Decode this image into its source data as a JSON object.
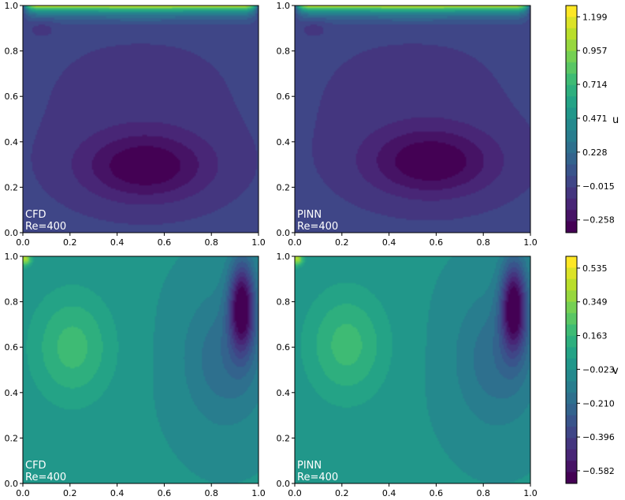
{
  "chart_data": [
    {
      "type": "heatmap",
      "variable": "u",
      "panel_label": "CFD",
      "panel_sublabel": "Re=400",
      "xlim": [
        0,
        1
      ],
      "ylim": [
        0,
        1
      ],
      "xticks": [
        "0.0",
        "0.2",
        "0.4",
        "0.6",
        "0.8",
        "1.0"
      ],
      "yticks": [
        "0.0",
        "0.2",
        "0.4",
        "0.6",
        "0.8",
        "1.0"
      ],
      "vortex_center": [
        0.52,
        0.29
      ],
      "corner_vortex": [
        0.08,
        0.91
      ]
    },
    {
      "type": "heatmap",
      "variable": "u",
      "panel_label": "PINN",
      "panel_sublabel": "Re=400",
      "xlim": [
        0,
        1
      ],
      "ylim": [
        0,
        1
      ],
      "xticks": [
        "0.0",
        "0.2",
        "0.4",
        "0.6",
        "0.8",
        "1.0"
      ],
      "yticks": [
        "0.0",
        "0.2",
        "0.4",
        "0.6",
        "0.8",
        "1.0"
      ],
      "vortex_center": [
        0.58,
        0.31
      ],
      "corner_vortex": [
        0.08,
        0.91
      ]
    },
    {
      "type": "heatmap",
      "variable": "v",
      "panel_label": "CFD",
      "panel_sublabel": "Re=400",
      "xlim": [
        0,
        1
      ],
      "ylim": [
        0,
        1
      ],
      "xticks": [
        "0.0",
        "0.2",
        "0.4",
        "0.6",
        "0.8",
        "1.0"
      ],
      "yticks": [
        "0.0",
        "0.2",
        "0.4",
        "0.6",
        "0.8",
        "1.0"
      ],
      "positive_center": [
        0.21,
        0.6
      ],
      "negative_center": [
        0.93,
        0.78
      ]
    },
    {
      "type": "heatmap",
      "variable": "v",
      "panel_label": "PINN",
      "panel_sublabel": "Re=400",
      "xlim": [
        0,
        1
      ],
      "ylim": [
        0,
        1
      ],
      "xticks": [
        "0.0",
        "0.2",
        "0.4",
        "0.6",
        "0.8",
        "1.0"
      ],
      "yticks": [
        "0.0",
        "0.2",
        "0.4",
        "0.6",
        "0.8",
        "1.0"
      ],
      "positive_center": [
        0.22,
        0.61
      ],
      "negative_center": [
        0.93,
        0.78
      ]
    }
  ],
  "colorbars": [
    {
      "label": "u",
      "range": [
        -0.35,
        1.28
      ],
      "ticks": [
        {
          "value": 1.199,
          "label": "1.199"
        },
        {
          "value": 0.957,
          "label": "0.957"
        },
        {
          "value": 0.714,
          "label": "0.714"
        },
        {
          "value": 0.471,
          "label": "0.471"
        },
        {
          "value": 0.228,
          "label": "0.228"
        },
        {
          "value": -0.015,
          "label": "−0.015"
        },
        {
          "value": -0.258,
          "label": "−0.258"
        }
      ]
    },
    {
      "label": "v",
      "range": [
        -0.652,
        0.6
      ],
      "ticks": [
        {
          "value": 0.535,
          "label": "0.535"
        },
        {
          "value": 0.349,
          "label": "0.349"
        },
        {
          "value": 0.163,
          "label": "0.163"
        },
        {
          "value": -0.023,
          "label": "−0.023"
        },
        {
          "value": -0.21,
          "label": "−0.210"
        },
        {
          "value": -0.396,
          "label": "−0.396"
        },
        {
          "value": -0.582,
          "label": "−0.582"
        }
      ]
    }
  ],
  "colormap": [
    "#440154",
    "#482878",
    "#3e4989",
    "#31688e",
    "#26828e",
    "#1f9e89",
    "#35b779",
    "#6ece58",
    "#b5de2b",
    "#fde725"
  ]
}
